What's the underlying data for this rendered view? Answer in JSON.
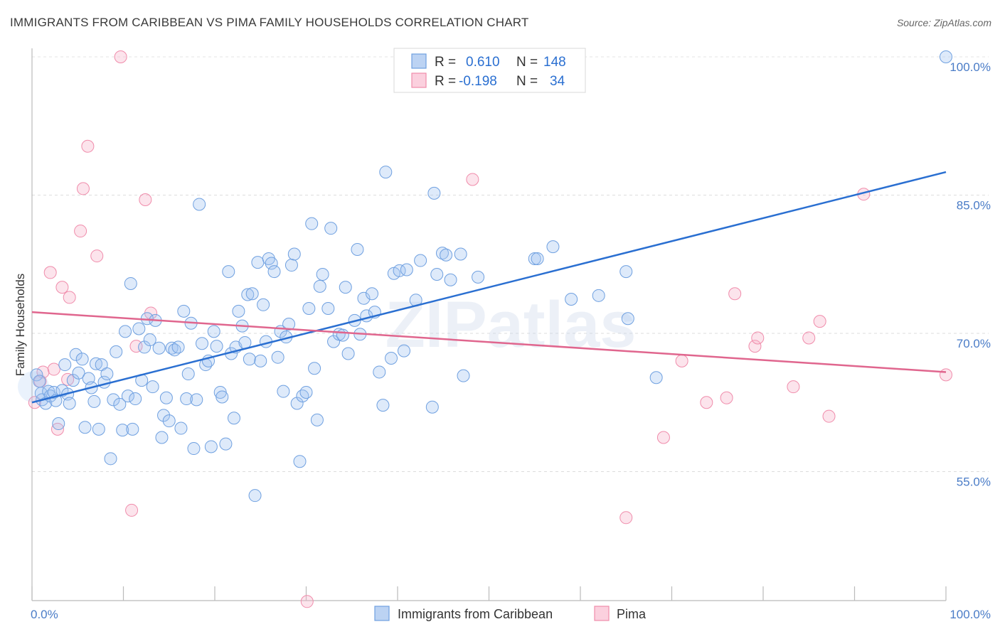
{
  "header": {
    "title": "IMMIGRANTS FROM CARIBBEAN VS PIMA FAMILY HOUSEHOLDS CORRELATION CHART",
    "source": "Source: ZipAtlas.com"
  },
  "watermark": "ZIPatlas",
  "legend": {
    "rows": [
      {
        "r_label": "R =",
        "r_value": "0.610",
        "n_label": "N =",
        "n_value": "148",
        "color": "#6fa0e0"
      },
      {
        "r_label": "R =",
        "r_value": "-0.198",
        "n_label": "N =",
        "n_value": "34",
        "color": "#f08cab"
      }
    ]
  },
  "bottom_legend": [
    {
      "label": "Immigrants from Caribbean",
      "color": "#6fa0e0"
    },
    {
      "label": "Pima",
      "color": "#f08cab"
    }
  ],
  "chart_data": {
    "type": "scatter",
    "title": "IMMIGRANTS FROM CARIBBEAN VS PIMA FAMILY HOUSEHOLDS CORRELATION CHART",
    "ylabel": "Family Households",
    "xlabel": "",
    "xlim": [
      0,
      100
    ],
    "ylim": [
      41,
      100
    ],
    "x_tick_labels": [
      {
        "value": 0,
        "label": "0.0%"
      },
      {
        "value": 100,
        "label": "100.0%"
      }
    ],
    "y_tick_labels": [
      {
        "value": 55,
        "label": "55.0%"
      },
      {
        "value": 70,
        "label": "70.0%"
      },
      {
        "value": 85,
        "label": "85.0%"
      },
      {
        "value": 100,
        "label": "100.0%"
      }
    ],
    "grid": true,
    "legend_position": "top-center",
    "colors": {
      "caribbean": "#6fa0e0",
      "pima": "#f08cab",
      "caribbean_line": "#2a6fd1",
      "pima_line": "#e0668e"
    },
    "series": [
      {
        "name": "Immigrants from Caribbean",
        "R": 0.61,
        "N": 148,
        "trend": {
          "x": [
            0,
            100
          ],
          "y": [
            62.5,
            87.5
          ]
        },
        "points": [
          [
            0.5,
            65.5
          ],
          [
            0.8,
            64.8
          ],
          [
            1.0,
            63.5
          ],
          [
            1.1,
            62.8
          ],
          [
            1.5,
            62.4
          ],
          [
            1.8,
            63.7
          ],
          [
            2.0,
            63.2
          ],
          [
            2.4,
            63.6
          ],
          [
            2.6,
            62.7
          ],
          [
            2.9,
            60.2
          ],
          [
            3.3,
            63.8
          ],
          [
            3.6,
            66.6
          ],
          [
            3.9,
            63.4
          ],
          [
            4.1,
            62.4
          ],
          [
            4.5,
            64.9
          ],
          [
            4.8,
            67.7
          ],
          [
            5.1,
            65.7
          ],
          [
            5.5,
            67.2
          ],
          [
            5.8,
            59.8
          ],
          [
            6.2,
            65.1
          ],
          [
            6.5,
            64.1
          ],
          [
            6.8,
            62.6
          ],
          [
            7.0,
            66.7
          ],
          [
            7.3,
            59.6
          ],
          [
            7.6,
            66.6
          ],
          [
            7.9,
            64.7
          ],
          [
            8.2,
            65.6
          ],
          [
            8.6,
            56.4
          ],
          [
            8.9,
            62.8
          ],
          [
            9.2,
            68.0
          ],
          [
            9.6,
            62.3
          ],
          [
            9.9,
            59.5
          ],
          [
            10.2,
            70.2
          ],
          [
            10.5,
            63.2
          ],
          [
            10.8,
            75.4
          ],
          [
            11.0,
            59.6
          ],
          [
            11.3,
            62.9
          ],
          [
            11.7,
            70.5
          ],
          [
            12.0,
            64.9
          ],
          [
            12.3,
            68.5
          ],
          [
            12.6,
            71.6
          ],
          [
            12.9,
            69.3
          ],
          [
            13.2,
            64.2
          ],
          [
            13.5,
            71.4
          ],
          [
            13.9,
            68.4
          ],
          [
            14.2,
            58.7
          ],
          [
            14.4,
            61.1
          ],
          [
            14.7,
            63.0
          ],
          [
            15.0,
            60.5
          ],
          [
            15.3,
            68.4
          ],
          [
            15.6,
            68.2
          ],
          [
            16.0,
            68.5
          ],
          [
            16.3,
            59.7
          ],
          [
            16.6,
            72.4
          ],
          [
            16.9,
            62.9
          ],
          [
            17.1,
            65.6
          ],
          [
            17.4,
            71.1
          ],
          [
            17.7,
            57.5
          ],
          [
            18.0,
            62.8
          ],
          [
            18.3,
            84.0
          ],
          [
            18.6,
            68.9
          ],
          [
            19.0,
            66.6
          ],
          [
            19.3,
            67.0
          ],
          [
            19.6,
            57.7
          ],
          [
            19.9,
            70.2
          ],
          [
            20.2,
            68.6
          ],
          [
            20.6,
            63.6
          ],
          [
            20.8,
            63.1
          ],
          [
            21.2,
            58.0
          ],
          [
            21.5,
            76.7
          ],
          [
            21.8,
            67.8
          ],
          [
            22.1,
            60.8
          ],
          [
            22.3,
            68.5
          ],
          [
            22.6,
            72.4
          ],
          [
            23.0,
            70.8
          ],
          [
            23.3,
            69.0
          ],
          [
            23.6,
            74.2
          ],
          [
            23.8,
            67.2
          ],
          [
            24.1,
            74.3
          ],
          [
            24.4,
            52.4
          ],
          [
            24.7,
            77.7
          ],
          [
            25.0,
            67.0
          ],
          [
            25.3,
            73.1
          ],
          [
            25.6,
            69.1
          ],
          [
            25.9,
            78.1
          ],
          [
            26.2,
            77.6
          ],
          [
            26.5,
            76.7
          ],
          [
            26.9,
            67.4
          ],
          [
            27.2,
            70.2
          ],
          [
            27.5,
            63.7
          ],
          [
            27.8,
            69.6
          ],
          [
            28.1,
            71.0
          ],
          [
            28.4,
            77.4
          ],
          [
            28.7,
            78.6
          ],
          [
            29.0,
            62.4
          ],
          [
            29.3,
            56.1
          ],
          [
            29.6,
            63.2
          ],
          [
            30.0,
            63.6
          ],
          [
            30.3,
            72.7
          ],
          [
            30.6,
            81.9
          ],
          [
            30.9,
            66.2
          ],
          [
            31.2,
            60.6
          ],
          [
            31.5,
            75.1
          ],
          [
            31.8,
            76.4
          ],
          [
            32.4,
            72.7
          ],
          [
            32.7,
            81.4
          ],
          [
            33.0,
            69.1
          ],
          [
            33.6,
            69.9
          ],
          [
            34.0,
            69.8
          ],
          [
            34.3,
            75.0
          ],
          [
            34.6,
            67.8
          ],
          [
            35.3,
            71.4
          ],
          [
            35.6,
            79.1
          ],
          [
            35.9,
            69.9
          ],
          [
            36.3,
            73.8
          ],
          [
            36.6,
            71.9
          ],
          [
            37.2,
            74.3
          ],
          [
            37.5,
            72.3
          ],
          [
            38.0,
            65.8
          ],
          [
            38.4,
            62.2
          ],
          [
            38.7,
            87.5
          ],
          [
            39.3,
            67.3
          ],
          [
            39.6,
            76.5
          ],
          [
            40.2,
            76.8
          ],
          [
            40.7,
            68.1
          ],
          [
            41.0,
            76.9
          ],
          [
            42.0,
            73.6
          ],
          [
            42.5,
            77.9
          ],
          [
            43.8,
            62.0
          ],
          [
            44.0,
            85.2
          ],
          [
            44.3,
            76.4
          ],
          [
            44.9,
            78.7
          ],
          [
            45.3,
            78.5
          ],
          [
            45.8,
            75.8
          ],
          [
            46.9,
            78.6
          ],
          [
            47.2,
            65.4
          ],
          [
            48.8,
            76.1
          ],
          [
            55.0,
            78.1
          ],
          [
            55.3,
            78.1
          ],
          [
            57.0,
            79.4
          ],
          [
            59.0,
            73.7
          ],
          [
            62.0,
            74.1
          ],
          [
            65.0,
            76.7
          ],
          [
            65.2,
            71.6
          ],
          [
            68.3,
            65.2
          ],
          [
            100.0,
            100.0
          ]
        ]
      },
      {
        "name": "Pima",
        "R": -0.198,
        "N": 34,
        "trend": {
          "x": [
            0,
            100
          ],
          "y": [
            72.3,
            65.8
          ]
        },
        "points": [
          [
            0.3,
            62.5
          ],
          [
            0.9,
            64.8
          ],
          [
            1.2,
            65.8
          ],
          [
            2.0,
            76.6
          ],
          [
            2.4,
            66.1
          ],
          [
            2.8,
            59.6
          ],
          [
            3.3,
            75.0
          ],
          [
            3.9,
            65.0
          ],
          [
            4.1,
            73.9
          ],
          [
            5.3,
            81.1
          ],
          [
            5.6,
            85.7
          ],
          [
            6.1,
            90.3
          ],
          [
            7.1,
            78.4
          ],
          [
            9.7,
            100.0
          ],
          [
            10.9,
            50.8
          ],
          [
            11.4,
            68.6
          ],
          [
            12.4,
            84.5
          ],
          [
            13.0,
            72.2
          ],
          [
            30.1,
            40.9
          ],
          [
            48.2,
            86.7
          ],
          [
            65.0,
            50.0
          ],
          [
            69.1,
            58.7
          ],
          [
            71.1,
            67.0
          ],
          [
            73.8,
            62.5
          ],
          [
            76.0,
            63.0
          ],
          [
            76.9,
            74.3
          ],
          [
            79.1,
            68.6
          ],
          [
            79.4,
            69.5
          ],
          [
            83.3,
            64.2
          ],
          [
            85.0,
            69.5
          ],
          [
            86.2,
            71.3
          ],
          [
            87.2,
            61.0
          ],
          [
            91.0,
            85.1
          ],
          [
            100.0,
            65.5
          ]
        ]
      }
    ]
  }
}
